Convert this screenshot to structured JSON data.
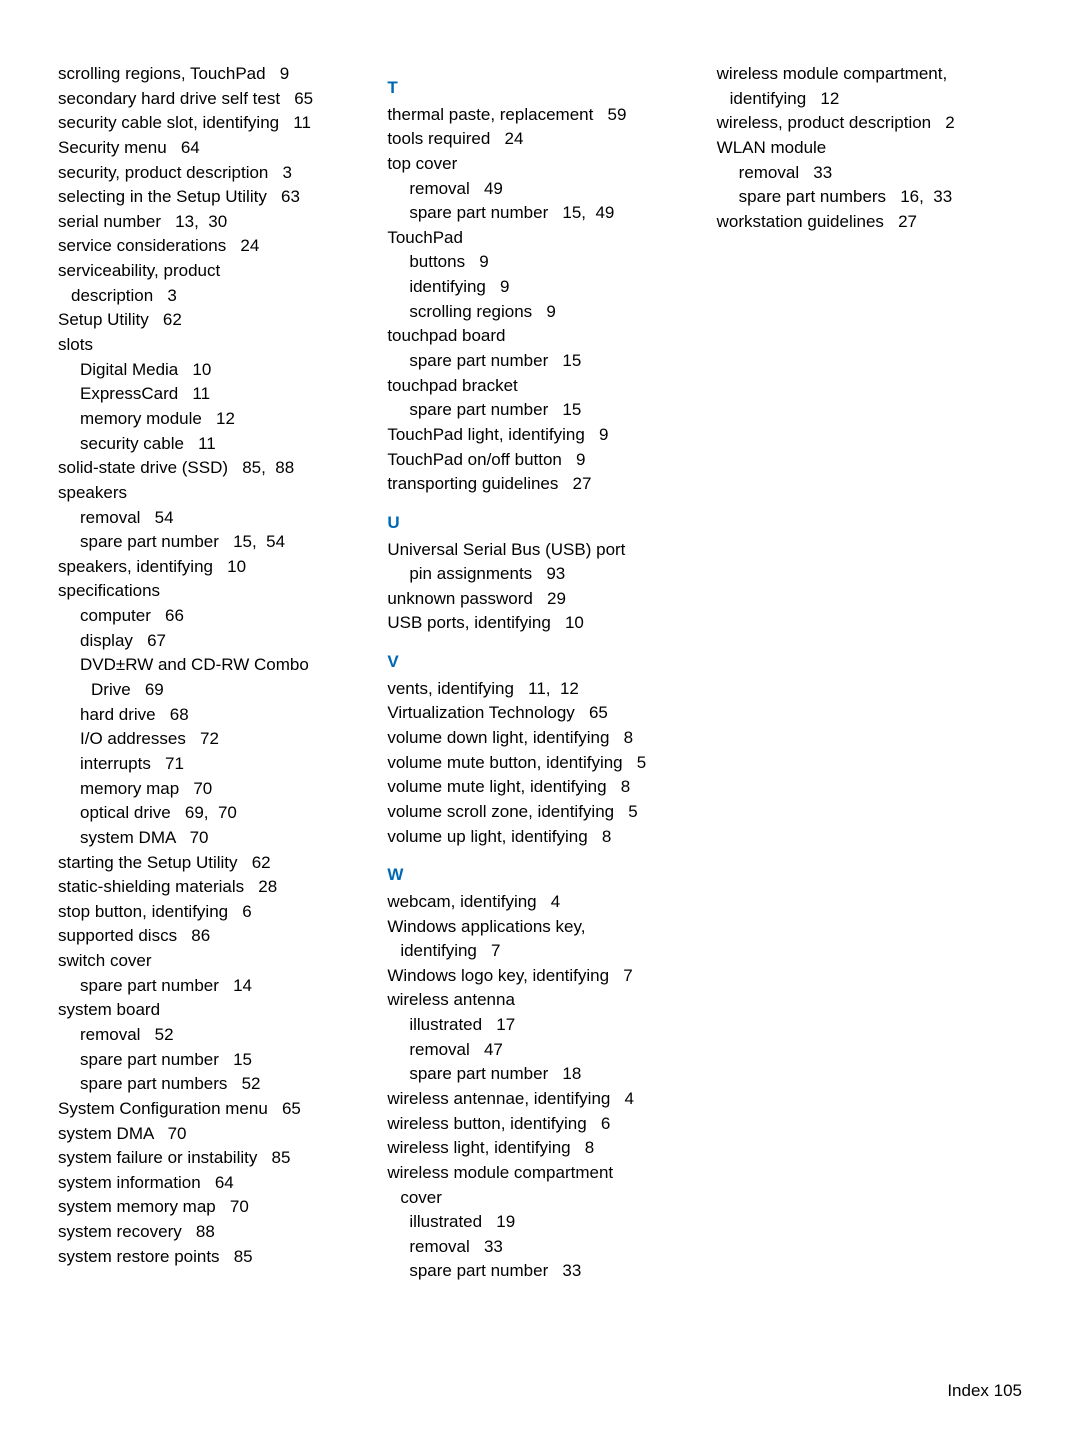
{
  "columns": [
    {
      "lines": [
        {
          "text": "scrolling regions, TouchPad   9",
          "indent": 0
        },
        {
          "text": "secondary hard drive self test   65",
          "indent": 0
        },
        {
          "text": "security cable slot, identifying   11",
          "indent": 0
        },
        {
          "text": "Security menu   64",
          "indent": 0
        },
        {
          "text": "security, product description   3",
          "indent": 0
        },
        {
          "text": "selecting in the Setup Utility   63",
          "indent": 0
        },
        {
          "text": "serial number   13,  30",
          "indent": 0
        },
        {
          "text": "service considerations   24",
          "indent": 0
        },
        {
          "text": "serviceability, product",
          "indent": 0
        },
        {
          "text": "description   3",
          "indent": 0,
          "hang": true
        },
        {
          "text": "Setup Utility   62",
          "indent": 0
        },
        {
          "text": "slots",
          "indent": 0
        },
        {
          "text": "Digital Media   10",
          "indent": 1
        },
        {
          "text": "ExpressCard   11",
          "indent": 1
        },
        {
          "text": "memory module   12",
          "indent": 1
        },
        {
          "text": "security cable   11",
          "indent": 1
        },
        {
          "text": "solid-state drive (SSD)   85,  88",
          "indent": 0
        },
        {
          "text": "speakers",
          "indent": 0
        },
        {
          "text": "removal   54",
          "indent": 1
        },
        {
          "text": "spare part number   15,  54",
          "indent": 1
        },
        {
          "text": "speakers, identifying   10",
          "indent": 0
        },
        {
          "text": "specifications",
          "indent": 0
        },
        {
          "text": "computer   66",
          "indent": 1
        },
        {
          "text": "display   67",
          "indent": 1
        },
        {
          "text": "DVD±RW and CD-RW Combo",
          "indent": 1
        },
        {
          "text": "Drive   69",
          "indent": 2
        },
        {
          "text": "hard drive   68",
          "indent": 1
        },
        {
          "text": "I/O addresses   72",
          "indent": 1
        },
        {
          "text": "interrupts   71",
          "indent": 1
        },
        {
          "text": "memory map   70",
          "indent": 1
        },
        {
          "text": "optical drive   69,  70",
          "indent": 1
        },
        {
          "text": "system DMA   70",
          "indent": 1
        },
        {
          "text": "starting the Setup Utility   62",
          "indent": 0
        },
        {
          "text": "static-shielding materials   28",
          "indent": 0
        },
        {
          "text": "stop button, identifying   6",
          "indent": 0
        },
        {
          "text": "supported discs   86",
          "indent": 0
        },
        {
          "text": "switch cover",
          "indent": 0
        },
        {
          "text": "spare part number   14",
          "indent": 1
        },
        {
          "text": "system board",
          "indent": 0
        },
        {
          "text": "removal   52",
          "indent": 1
        },
        {
          "text": "spare part number   15",
          "indent": 1
        },
        {
          "text": "spare part numbers   52",
          "indent": 1
        },
        {
          "text": "System Configuration menu   65",
          "indent": 0
        },
        {
          "text": "system DMA   70",
          "indent": 0
        },
        {
          "text": "system failure or instability   85",
          "indent": 0
        },
        {
          "text": "system information   64",
          "indent": 0
        },
        {
          "text": "system memory map   70",
          "indent": 0
        },
        {
          "text": "system recovery   88",
          "indent": 0
        },
        {
          "text": "system restore points   85",
          "indent": 0
        }
      ]
    },
    {
      "lines": [
        {
          "letter": "T"
        },
        {
          "text": "thermal paste, replacement   59",
          "indent": 0
        },
        {
          "text": "tools required   24",
          "indent": 0
        },
        {
          "text": "top cover",
          "indent": 0
        },
        {
          "text": "removal   49",
          "indent": 1
        },
        {
          "text": "spare part number   15,  49",
          "indent": 1
        },
        {
          "text": "TouchPad",
          "indent": 0
        },
        {
          "text": "buttons   9",
          "indent": 1
        },
        {
          "text": "identifying   9",
          "indent": 1
        },
        {
          "text": "scrolling regions   9",
          "indent": 1
        },
        {
          "text": "touchpad board",
          "indent": 0
        },
        {
          "text": "spare part number   15",
          "indent": 1
        },
        {
          "text": "touchpad bracket",
          "indent": 0
        },
        {
          "text": "spare part number   15",
          "indent": 1
        },
        {
          "text": "TouchPad light, identifying   9",
          "indent": 0
        },
        {
          "text": "TouchPad on/off button   9",
          "indent": 0
        },
        {
          "text": "transporting guidelines   27",
          "indent": 0
        },
        {
          "letter": "U"
        },
        {
          "text": "Universal Serial Bus (USB) port",
          "indent": 0
        },
        {
          "text": "pin assignments   93",
          "indent": 1
        },
        {
          "text": "unknown password   29",
          "indent": 0
        },
        {
          "text": "USB ports, identifying   10",
          "indent": 0
        },
        {
          "letter": "V"
        },
        {
          "text": "vents, identifying   11,  12",
          "indent": 0
        },
        {
          "text": "Virtualization Technology   65",
          "indent": 0
        },
        {
          "text": "volume down light, identifying   8",
          "indent": 0
        },
        {
          "text": "volume mute button, identifying   5",
          "indent": 0
        },
        {
          "text": "volume mute light, identifying   8",
          "indent": 0
        },
        {
          "text": "volume scroll zone, identifying   5",
          "indent": 0
        },
        {
          "text": "volume up light, identifying   8",
          "indent": 0
        },
        {
          "letter": "W"
        },
        {
          "text": "webcam, identifying   4",
          "indent": 0
        },
        {
          "text": "Windows applications key,",
          "indent": 0
        },
        {
          "text": "identifying   7",
          "indent": 0,
          "hang": true
        },
        {
          "text": "Windows logo key, identifying   7",
          "indent": 0
        },
        {
          "text": "wireless antenna",
          "indent": 0
        },
        {
          "text": "illustrated   17",
          "indent": 1
        },
        {
          "text": "removal   47",
          "indent": 1
        },
        {
          "text": "spare part number   18",
          "indent": 1
        },
        {
          "text": "wireless antennae, identifying   4",
          "indent": 0
        },
        {
          "text": "wireless button, identifying   6",
          "indent": 0
        },
        {
          "text": "wireless light, identifying   8",
          "indent": 0
        },
        {
          "text": "wireless module compartment",
          "indent": 0
        },
        {
          "text": "cover",
          "indent": 0,
          "hang": true
        },
        {
          "text": "illustrated   19",
          "indent": 1
        },
        {
          "text": "removal   33",
          "indent": 1
        },
        {
          "text": "spare part number   33",
          "indent": 1
        }
      ]
    },
    {
      "lines": [
        {
          "text": "wireless module compartment,",
          "indent": 0
        },
        {
          "text": "identifying   12",
          "indent": 0,
          "hang": true
        },
        {
          "text": "wireless, product description   2",
          "indent": 0
        },
        {
          "text": "WLAN module",
          "indent": 0
        },
        {
          "text": "removal   33",
          "indent": 1
        },
        {
          "text": "spare part numbers   16,  33",
          "indent": 1
        },
        {
          "text": "workstation guidelines   27",
          "indent": 0
        }
      ]
    }
  ],
  "footer": "Index 105"
}
